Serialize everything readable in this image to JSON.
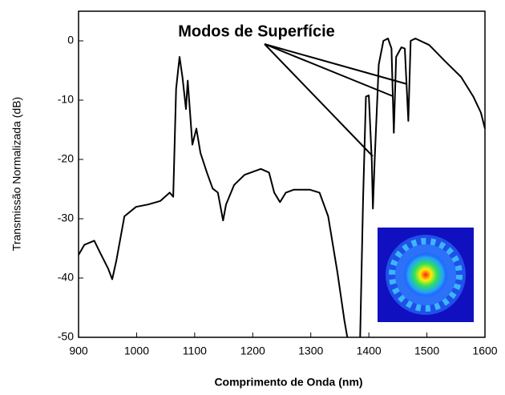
{
  "chart_data": {
    "type": "line",
    "x_label": "Comprimento de Onda (nm)",
    "y_label": "Transmissão Normalizada (dB)",
    "annotation": "Modos de Superfície",
    "xlim": [
      900,
      1600
    ],
    "xticks": [
      900,
      1000,
      1100,
      1200,
      1300,
      1400,
      1500,
      1600
    ],
    "ylim": [
      -50,
      5
    ],
    "yticks": [
      -50,
      -40,
      -30,
      -20,
      -10,
      0
    ],
    "series": [
      {
        "color": "#000000",
        "x": [
          900,
          910,
          927,
          937,
          951,
          958,
          965,
          979,
          999,
          1020,
          1041,
          1057,
          1063,
          1068,
          1074,
          1079,
          1085,
          1088,
          1092,
          1096,
          1103,
          1110,
          1121,
          1131,
          1140,
          1149,
          1154,
          1168,
          1186,
          1214,
          1228,
          1237,
          1247,
          1257,
          1271,
          1298,
          1315,
          1330,
          1346,
          1358,
          1363,
          1374,
          1385,
          1390,
          1395,
          1400,
          1405,
          1407,
          1410,
          1417,
          1425,
          1433,
          1439,
          1443,
          1447,
          1456,
          1462,
          1468,
          1472,
          1480,
          1504,
          1531,
          1559,
          1580,
          1593,
          1600
        ],
        "values": [
          -36.1,
          -34.4,
          -33.7,
          -35.7,
          -38.4,
          -40.2,
          -37.1,
          -29.6,
          -28,
          -27.6,
          -27,
          -25.6,
          -26.3,
          -8.1,
          -2.7,
          -6.1,
          -11.5,
          -6.7,
          -12.1,
          -17.5,
          -14.8,
          -18.9,
          -22.2,
          -24.9,
          -25.6,
          -30.3,
          -27.6,
          -24.3,
          -22.6,
          -21.6,
          -22.2,
          -25.6,
          -27.2,
          -25.6,
          -25.1,
          -25.1,
          -25.6,
          -29.6,
          -39.1,
          -47.2,
          -50,
          null,
          -50,
          -27,
          -9.4,
          -9.2,
          -20.2,
          -28.3,
          -20.2,
          -4,
          0,
          0.4,
          -1.3,
          -15.5,
          -2.7,
          -1.1,
          -1.3,
          -13.5,
          0,
          0.4,
          -0.7,
          -3.4,
          -6.1,
          -9.4,
          -12.1,
          -14.8
        ]
      }
    ]
  }
}
